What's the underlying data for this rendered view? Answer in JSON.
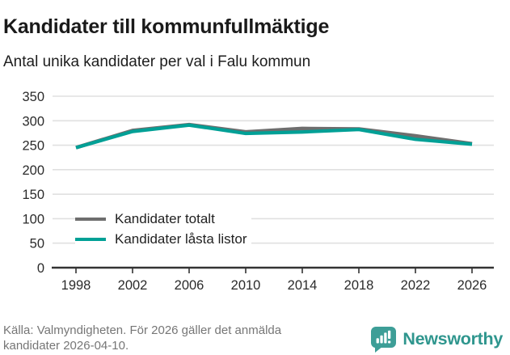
{
  "header": {
    "title": "Kandidater till kommunfullmäktige",
    "subtitle": "Antal unika kandidater per val i Falu kommun"
  },
  "chart_data": {
    "type": "line",
    "title": "Kandidater till kommunfullmäktige",
    "subtitle": "Antal unika kandidater per val i Falu kommun",
    "x": [
      1998,
      2002,
      2006,
      2010,
      2014,
      2018,
      2022,
      2026
    ],
    "series": [
      {
        "name": "Kandidater totalt",
        "color": "#6e6e6e",
        "values": [
          245,
          280,
          292,
          277,
          284,
          283,
          269,
          253
        ]
      },
      {
        "name": "Kandidater låsta listor",
        "color": "#00a096",
        "values": [
          245,
          278,
          291,
          274,
          277,
          282,
          262,
          252
        ]
      }
    ],
    "xlabel": "",
    "ylabel": "",
    "ylim": [
      0,
      350
    ],
    "ytick_step": 50,
    "xticks": [
      1998,
      2002,
      2006,
      2010,
      2014,
      2018,
      2022,
      2026
    ],
    "grid": true,
    "gridline_color": "#e0e0e0",
    "axis_color": "#333333",
    "tick_label_color": "#2b2b2b",
    "legend_position": "inside-bottom-left"
  },
  "footer": {
    "source_lines": [
      "Källa: Valmyndigheten. För 2026 gäller det anmälda",
      "kandidater 2026-04-10."
    ],
    "brand": "Newsworthy",
    "brand_color": "#2f968e",
    "logo_icon": "speech-bubble-bar-chart-icon",
    "logo_icon_color": "#3d9e97"
  }
}
